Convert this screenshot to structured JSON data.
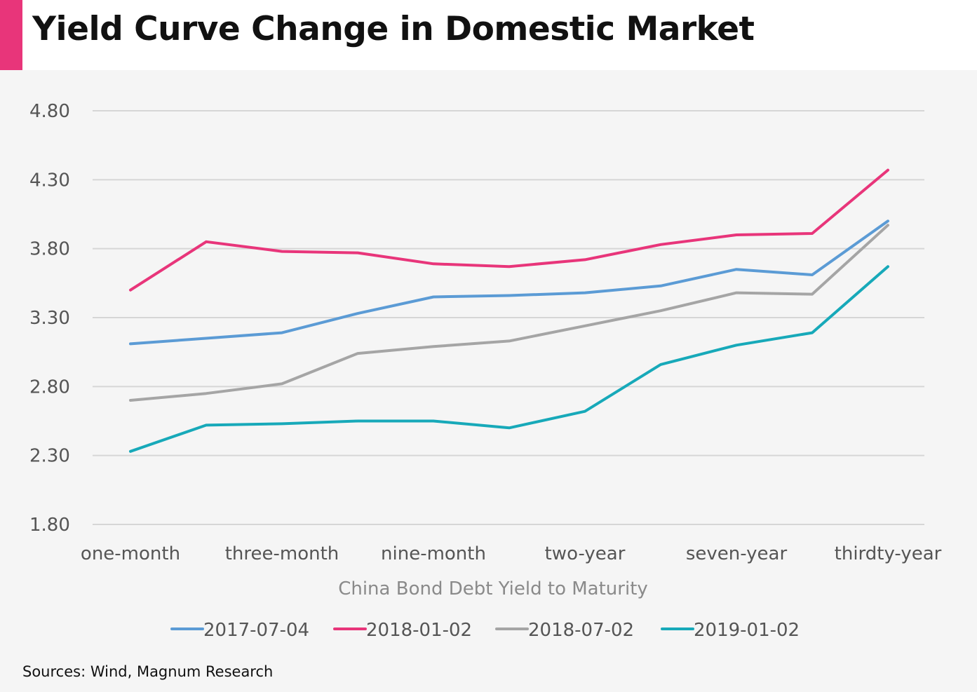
{
  "header": {
    "title": "Yield Curve Change in Domestic Market",
    "accent_color": "#e8357a"
  },
  "footer": {
    "source": "Sources:  Wind, Magnum Research"
  },
  "chart_data": {
    "type": "line",
    "title": "Yield Curve Change in Domestic Market",
    "xlabel": "China Bond Debt Yield to Maturity",
    "ylabel": "",
    "categories": [
      "one-month",
      "",
      "three-month",
      "",
      "nine-month",
      "",
      "two-year",
      "",
      "seven-year",
      "",
      "thirdty-year"
    ],
    "visible_tick_labels": [
      "one-month",
      "three-month",
      "nine-month",
      "two-year",
      "seven-year",
      "thirdty-year"
    ],
    "ylim": [
      1.8,
      4.8
    ],
    "yticks": [
      "1.80",
      "2.30",
      "2.80",
      "3.30",
      "3.80",
      "4.30",
      "4.80"
    ],
    "grid": true,
    "legend_position": "bottom",
    "series": [
      {
        "name": "2017-07-04",
        "color": "#5b9bd5",
        "values": [
          3.11,
          3.15,
          3.19,
          3.33,
          3.45,
          3.46,
          3.48,
          3.53,
          3.65,
          3.61,
          4.0
        ]
      },
      {
        "name": "2018-01-02",
        "color": "#e8357a",
        "values": [
          3.5,
          3.85,
          3.78,
          3.77,
          3.69,
          3.67,
          3.72,
          3.83,
          3.9,
          3.91,
          4.37
        ]
      },
      {
        "name": "2018-07-02",
        "color": "#a5a5a5",
        "values": [
          2.7,
          2.75,
          2.82,
          3.04,
          3.09,
          3.13,
          3.24,
          3.35,
          3.48,
          3.47,
          3.97
        ]
      },
      {
        "name": "2019-01-02",
        "color": "#17a9b9",
        "values": [
          2.33,
          2.52,
          2.53,
          2.55,
          2.55,
          2.5,
          2.62,
          2.96,
          3.1,
          3.19,
          3.67
        ]
      }
    ]
  }
}
